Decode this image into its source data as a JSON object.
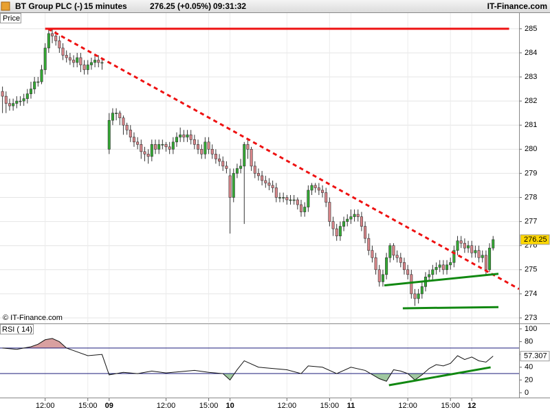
{
  "header": {
    "symbol": "BT Group PLC (-)",
    "interval": "15 minutes",
    "quote": "276.25 (+0.05%)",
    "time": "09:31:32",
    "brand": "IT-Finance.com"
  },
  "chart_data": [
    {
      "type": "candlestick",
      "title": "Price",
      "source": "© IT-Finance.com",
      "x": [
        4,
        5,
        6,
        7,
        8,
        9,
        10,
        11,
        12,
        13,
        14,
        15,
        16,
        17,
        18,
        19,
        20,
        21,
        22,
        23,
        24,
        25,
        26,
        27,
        28,
        29,
        30,
        31,
        32,
        34,
        35,
        36,
        37,
        38,
        39,
        40,
        41,
        42,
        43,
        44,
        45,
        46,
        47,
        48,
        49,
        50,
        51,
        52,
        53,
        54,
        55,
        56,
        57,
        58,
        59,
        60,
        61,
        62,
        63,
        64,
        65,
        66,
        67,
        68,
        69,
        70,
        71,
        72,
        73,
        74,
        75,
        76,
        77,
        78,
        79,
        80,
        81,
        82,
        83,
        84,
        85,
        86,
        87,
        88,
        89,
        90,
        91,
        92,
        93,
        94,
        95,
        96,
        97,
        98,
        99,
        100,
        101,
        102,
        103,
        104,
        105,
        106,
        107,
        108,
        109,
        110,
        111,
        112,
        113,
        114,
        115,
        116,
        117,
        118,
        119,
        120,
        121,
        122,
        123,
        124,
        125,
        126,
        127,
        128,
        129,
        130,
        131,
        132,
        133,
        134,
        135,
        136,
        137,
        138,
        139,
        140,
        141,
        142
      ],
      "open": [
        282.4,
        282.2,
        281.9,
        281.8,
        281.9,
        282.0,
        282.0,
        282.1,
        282.3,
        282.5,
        282.8,
        282.8,
        283.3,
        284.2,
        284.8,
        284.7,
        284.5,
        284.2,
        283.9,
        283.8,
        283.7,
        283.6,
        283.8,
        283.5,
        283.3,
        283.5,
        283.6,
        283.7,
        283.6,
        280.0,
        281.2,
        281.5,
        281.5,
        281.3,
        281.0,
        280.8,
        280.5,
        280.3,
        280.2,
        279.9,
        279.8,
        279.7,
        280.2,
        280.0,
        280.2,
        280.2,
        280.1,
        280.0,
        280.3,
        280.5,
        280.6,
        280.5,
        280.6,
        280.4,
        280.2,
        280.0,
        279.8,
        280.3,
        280.0,
        279.8,
        279.6,
        279.5,
        279.3,
        278.9,
        278.0,
        279.0,
        279.2,
        279.3,
        280.2,
        280.0,
        279.3,
        279.0,
        278.9,
        278.7,
        278.6,
        278.5,
        278.4,
        278.0,
        278.0,
        278.0,
        277.9,
        277.9,
        277.9,
        277.7,
        277.4,
        277.6,
        278.3,
        278.5,
        278.4,
        278.3,
        278.2,
        277.8,
        277.0,
        276.7,
        276.4,
        276.8,
        277.0,
        277.1,
        277.2,
        277.3,
        277.2,
        276.8,
        276.3,
        275.8,
        275.5,
        275.0,
        274.5,
        274.8,
        275.5,
        276.0,
        275.6,
        275.5,
        275.3,
        275.0,
        274.8,
        274.0,
        273.8,
        274.0,
        274.3,
        274.7,
        274.8,
        275.0,
        275.1,
        275.2,
        275.0,
        275.2,
        275.3,
        275.8,
        276.2,
        276.1,
        275.9,
        276.0,
        275.7,
        275.8,
        275.5,
        275.6,
        275.0,
        275.9
      ],
      "high": [
        282.6,
        282.4,
        282.1,
        282.1,
        282.2,
        282.2,
        282.3,
        282.5,
        282.8,
        283.0,
        283.0,
        283.5,
        284.4,
        285.0,
        285.0,
        284.9,
        284.7,
        284.4,
        284.1,
        284.0,
        283.9,
        284.0,
        284.0,
        283.7,
        283.7,
        283.8,
        283.9,
        283.9,
        283.8,
        281.5,
        281.7,
        281.7,
        281.6,
        281.4,
        281.1,
        281.0,
        280.7,
        280.5,
        280.4,
        280.1,
        280.0,
        280.4,
        280.4,
        280.4,
        280.4,
        280.3,
        280.3,
        280.5,
        280.7,
        280.9,
        280.8,
        280.8,
        280.8,
        280.6,
        280.4,
        280.2,
        280.5,
        280.5,
        280.2,
        280.0,
        279.8,
        279.7,
        279.5,
        279.2,
        279.2,
        279.4,
        279.6,
        280.3,
        280.4,
        280.1,
        279.5,
        279.2,
        279.1,
        278.9,
        278.8,
        278.7,
        278.6,
        278.2,
        278.2,
        278.1,
        278.1,
        278.1,
        278.0,
        277.9,
        277.8,
        278.5,
        278.6,
        278.6,
        278.6,
        278.5,
        278.4,
        278.0,
        277.2,
        276.9,
        277.0,
        277.2,
        277.3,
        277.5,
        277.5,
        277.5,
        277.4,
        277.0,
        276.5,
        276.0,
        275.7,
        275.2,
        275.0,
        275.7,
        276.1,
        276.1,
        275.8,
        275.7,
        275.5,
        275.2,
        275.0,
        274.2,
        274.2,
        274.5,
        274.9,
        275.0,
        275.2,
        275.3,
        275.4,
        275.4,
        275.4,
        275.5,
        276.0,
        276.4,
        276.4,
        276.3,
        276.2,
        276.2,
        276.0,
        276.0,
        275.8,
        275.8,
        276.1,
        276.4
      ],
      "low": [
        281.5,
        281.5,
        281.6,
        281.6,
        281.7,
        281.8,
        281.8,
        281.9,
        282.1,
        282.3,
        282.6,
        282.7,
        283.1,
        284.0,
        284.4,
        284.3,
        284.0,
        283.7,
        283.6,
        283.5,
        283.4,
        283.4,
        283.2,
        283.1,
        283.1,
        283.3,
        283.4,
        283.4,
        283.3,
        279.8,
        281.0,
        281.2,
        281.0,
        280.6,
        280.6,
        280.3,
        280.1,
        280.0,
        279.6,
        279.5,
        279.4,
        279.5,
        279.8,
        279.8,
        280.0,
        279.9,
        279.8,
        279.8,
        280.1,
        280.3,
        280.3,
        280.3,
        280.2,
        280.0,
        279.8,
        279.6,
        279.6,
        279.8,
        279.6,
        279.4,
        279.3,
        279.1,
        279.0,
        276.5,
        277.8,
        278.8,
        279.0,
        276.9,
        279.6,
        279.1,
        278.8,
        278.7,
        278.5,
        278.4,
        278.3,
        278.2,
        277.8,
        277.8,
        277.8,
        277.7,
        277.7,
        277.7,
        277.5,
        277.2,
        277.2,
        277.4,
        278.1,
        278.2,
        278.1,
        278.0,
        277.6,
        276.8,
        276.4,
        276.2,
        276.2,
        276.6,
        276.8,
        276.9,
        277.0,
        277.0,
        276.6,
        276.1,
        275.6,
        275.3,
        274.8,
        274.3,
        274.3,
        274.6,
        275.3,
        275.4,
        275.3,
        275.1,
        274.8,
        274.6,
        273.8,
        273.5,
        273.6,
        273.8,
        274.1,
        274.5,
        274.6,
        274.8,
        274.9,
        274.8,
        274.8,
        275.0,
        275.1,
        275.6,
        275.9,
        275.7,
        275.7,
        275.5,
        275.5,
        275.3,
        275.3,
        274.8,
        274.9,
        275.8
      ],
      "close": [
        282.2,
        281.9,
        281.8,
        281.9,
        282.0,
        282.0,
        282.1,
        282.3,
        282.5,
        282.8,
        282.8,
        283.3,
        284.2,
        284.8,
        284.7,
        284.5,
        284.2,
        283.9,
        283.8,
        283.7,
        283.6,
        283.8,
        283.5,
        283.3,
        283.5,
        283.6,
        283.7,
        283.6,
        283.6,
        281.2,
        281.5,
        281.5,
        281.3,
        281.0,
        280.8,
        280.5,
        280.3,
        280.2,
        279.9,
        279.8,
        279.7,
        280.2,
        280.0,
        280.2,
        280.2,
        280.1,
        280.0,
        280.3,
        280.5,
        280.6,
        280.5,
        280.6,
        280.4,
        280.2,
        280.0,
        279.8,
        280.3,
        280.0,
        279.8,
        279.6,
        279.5,
        279.3,
        279.2,
        278.0,
        279.0,
        279.2,
        279.3,
        280.2,
        280.0,
        279.3,
        279.0,
        278.9,
        278.7,
        278.6,
        278.5,
        278.4,
        278.0,
        278.0,
        278.0,
        277.9,
        277.9,
        277.9,
        277.7,
        277.4,
        277.6,
        278.3,
        278.5,
        278.4,
        278.3,
        278.2,
        277.8,
        277.0,
        276.7,
        276.4,
        276.8,
        277.0,
        277.1,
        277.2,
        277.3,
        277.2,
        276.8,
        276.3,
        275.8,
        275.5,
        275.0,
        274.5,
        274.8,
        275.5,
        276.0,
        275.6,
        275.5,
        275.3,
        275.0,
        274.8,
        274.0,
        273.8,
        274.0,
        274.3,
        274.7,
        274.8,
        275.0,
        275.1,
        275.2,
        275.0,
        275.2,
        275.3,
        275.8,
        276.2,
        276.1,
        275.9,
        276.0,
        275.7,
        275.8,
        275.5,
        275.6,
        275.0,
        275.9,
        276.25
      ],
      "up_color": "#33aa33",
      "down_color": "#d9868a",
      "xlim": [
        3.3,
        149.3
      ],
      "ylim": [
        272.8,
        285.68
      ],
      "yticks": [
        273,
        274,
        275,
        276,
        277,
        278,
        279,
        280,
        281,
        282,
        283,
        284,
        285
      ],
      "grid": true,
      "lines": [
        {
          "color": "#ee1111",
          "style": "solid",
          "x": [
            16,
            146.5
          ],
          "y": [
            285,
            285
          ]
        },
        {
          "color": "#ee1111",
          "style": "dashed",
          "x": [
            16.8,
            149.3
          ],
          "y": [
            285,
            274.2
          ]
        },
        {
          "color": "#118811",
          "style": "solid",
          "x": [
            111.4,
            143.5
          ],
          "y": [
            274.35,
            274.83
          ]
        },
        {
          "color": "#118811",
          "style": "solid",
          "x": [
            116.6,
            143.5
          ],
          "y": [
            273.4,
            273.45
          ]
        }
      ]
    },
    {
      "type": "line",
      "title": "RSI ( 14)",
      "color": "#111111",
      "x": [
        4,
        8,
        12,
        14,
        16,
        18,
        20,
        22,
        24,
        28,
        32,
        34,
        38,
        42,
        46,
        50,
        54,
        58,
        62,
        66,
        68,
        70,
        72,
        76,
        80,
        84,
        88,
        90,
        94,
        98,
        102,
        106,
        110,
        112,
        114,
        116,
        118,
        120,
        122,
        124,
        126,
        128,
        130,
        132,
        134,
        136,
        138,
        140,
        142
      ],
      "values": [
        70,
        68,
        72,
        76,
        83,
        85,
        80,
        70,
        66,
        58,
        60,
        28,
        32,
        30,
        34,
        31,
        33,
        35,
        32,
        30,
        20,
        36,
        50,
        40,
        38,
        36,
        30,
        42,
        40,
        30,
        40,
        35,
        22,
        18,
        36,
        34,
        30,
        20,
        28,
        38,
        44,
        42,
        46,
        58,
        52,
        56,
        50,
        48,
        57.307
      ],
      "levels": [
        70,
        30
      ],
      "level_color": "#1a1a7a",
      "over_color": "#d9a0a0",
      "under_color": "#a0c8a0",
      "xlim": [
        3.3,
        149.3
      ],
      "ylim": [
        -6.5,
        107.5
      ],
      "yticks": [
        0,
        20,
        40,
        60,
        80,
        100
      ],
      "xticks": [
        {
          "value": 16,
          "label": "12:00"
        },
        {
          "value": 28,
          "label": "15:00"
        },
        {
          "value": 34,
          "label": "09"
        },
        {
          "value": 50,
          "label": "12:00"
        },
        {
          "value": 62,
          "label": "15:00"
        },
        {
          "value": 68,
          "label": "10"
        },
        {
          "value": 84,
          "label": "12:00"
        },
        {
          "value": 96,
          "label": "15:00"
        },
        {
          "value": 102,
          "label": "11"
        },
        {
          "value": 118,
          "label": "12:00"
        },
        {
          "value": 130,
          "label": "15:00"
        },
        {
          "value": 136,
          "label": "12"
        }
      ],
      "lines": [
        {
          "color": "#118811",
          "style": "solid",
          "x": [
            112.7,
            141.3
          ],
          "y": [
            11.8,
            39.8
          ]
        }
      ]
    }
  ]
}
